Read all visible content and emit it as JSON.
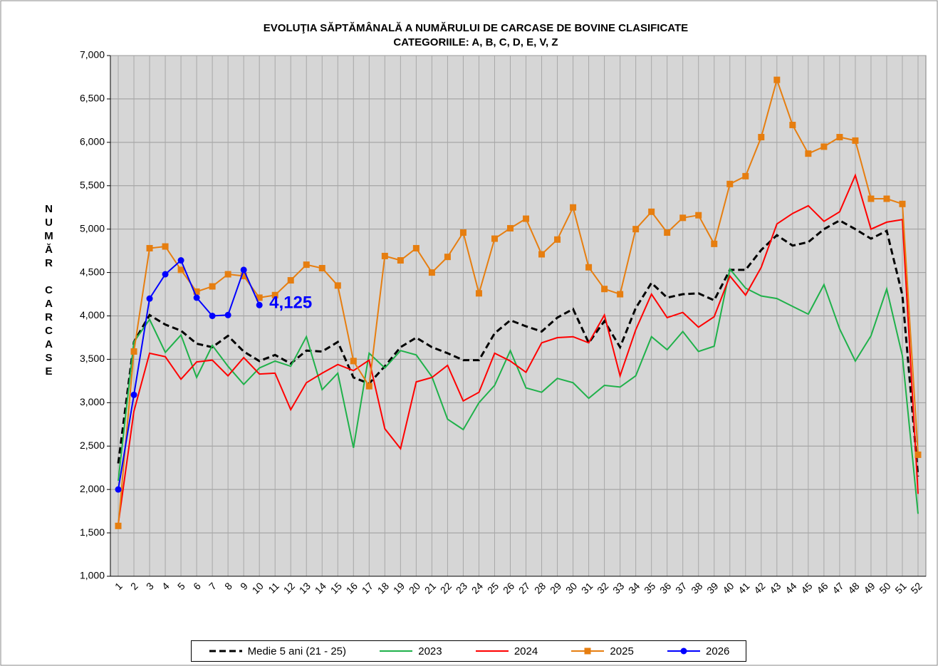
{
  "chart_data": {
    "type": "line",
    "title": "EVOLUŢIA SĂPTĂMÂNALĂ  A NUMĂRULUI DE CARCASE DE BOVINE  CLASIFICATE",
    "subtitle": "CATEGORIILE:  A, B, C, D, E, V, Z",
    "y_label": "NUMĂR CARCASE",
    "categories": [
      "1",
      "2",
      "3",
      "4",
      "5",
      "6",
      "7",
      "8",
      "9",
      "10",
      "11",
      "12",
      "13",
      "14",
      "15",
      "16",
      "17",
      "18",
      "19",
      "20",
      "21",
      "22",
      "23",
      "24",
      "25",
      "26",
      "27",
      "28",
      "29",
      "30",
      "31",
      "32",
      "33",
      "34",
      "35",
      "36",
      "37",
      "38",
      "39",
      "40",
      "41",
      "42",
      "43",
      "44",
      "45",
      "46",
      "47",
      "48",
      "49",
      "50",
      "51",
      "52"
    ],
    "ylim": [
      1000,
      7000
    ],
    "yticks": [
      {
        "value": 1000,
        "label": "1,000"
      },
      {
        "value": 1500,
        "label": "1,500"
      },
      {
        "value": 2000,
        "label": "2,000"
      },
      {
        "value": 2500,
        "label": "2,500"
      },
      {
        "value": 3000,
        "label": "3,000"
      },
      {
        "value": 3500,
        "label": "3,500"
      },
      {
        "value": 4000,
        "label": "4,000"
      },
      {
        "value": 4500,
        "label": "4,500"
      },
      {
        "value": 5000,
        "label": "5,000"
      },
      {
        "value": 5500,
        "label": "5,500"
      },
      {
        "value": 6000,
        "label": "6,000"
      },
      {
        "value": 6500,
        "label": "6,500"
      },
      {
        "value": 7000,
        "label": "7,000"
      }
    ],
    "grid": true,
    "series": [
      {
        "name": "Medie 5 ani (21 - 25)",
        "color": "#000000",
        "dash": true,
        "marker": null,
        "values": [
          2300,
          3700,
          4010,
          3900,
          3830,
          3680,
          3640,
          3770,
          3590,
          3480,
          3550,
          3450,
          3600,
          3590,
          3700,
          3290,
          3220,
          3420,
          3640,
          3750,
          3640,
          3570,
          3490,
          3490,
          3800,
          3950,
          3880,
          3820,
          3980,
          4080,
          3690,
          3940,
          3640,
          4090,
          4380,
          4210,
          4250,
          4260,
          4180,
          4530,
          4530,
          4760,
          4930,
          4810,
          4850,
          5000,
          5100,
          5000,
          4890,
          4980,
          4240,
          2150
        ]
      },
      {
        "name": "2023",
        "color": "#1fb14a",
        "dash": false,
        "marker": null,
        "values": [
          2100,
          3700,
          3960,
          3580,
          3780,
          3290,
          3660,
          3420,
          3210,
          3400,
          3480,
          3420,
          3760,
          3150,
          3340,
          2480,
          3570,
          3400,
          3600,
          3550,
          3300,
          2810,
          2690,
          3000,
          3200,
          3600,
          3170,
          3120,
          3280,
          3230,
          3050,
          3200,
          3180,
          3310,
          3760,
          3610,
          3820,
          3590,
          3650,
          4540,
          4320,
          4230,
          4200,
          4110,
          4020,
          4360,
          3850,
          3480,
          3770,
          4310,
          3540,
          1720
        ]
      },
      {
        "name": "2024",
        "color": "#ff0000",
        "dash": false,
        "marker": null,
        "values": [
          1600,
          2900,
          3570,
          3530,
          3270,
          3470,
          3490,
          3310,
          3520,
          3330,
          3340,
          2920,
          3230,
          3340,
          3440,
          3370,
          3490,
          2700,
          2470,
          3240,
          3290,
          3430,
          3020,
          3120,
          3570,
          3480,
          3350,
          3690,
          3750,
          3760,
          3690,
          4010,
          3310,
          3840,
          4250,
          3980,
          4040,
          3870,
          3990,
          4460,
          4240,
          4560,
          5060,
          5180,
          5270,
          5090,
          5200,
          5620,
          5000,
          5080,
          5110,
          1950
        ]
      },
      {
        "name": "2025",
        "color": "#e67e10",
        "dash": false,
        "marker": "square",
        "values": [
          1580,
          3590,
          4780,
          4800,
          4530,
          4280,
          4340,
          4480,
          4460,
          4210,
          4240,
          4410,
          4590,
          4550,
          4350,
          3480,
          3190,
          4690,
          4640,
          4780,
          4500,
          4680,
          4960,
          4260,
          4890,
          5010,
          5120,
          4710,
          4880,
          5250,
          4560,
          4310,
          4250,
          5000,
          5200,
          4960,
          5130,
          5160,
          4830,
          5520,
          5610,
          6060,
          6720,
          6200,
          5870,
          5950,
          6060,
          6020,
          5350,
          5350,
          5290,
          2400
        ]
      },
      {
        "name": "2026",
        "color": "#0000ff",
        "dash": false,
        "marker": "circle",
        "values": [
          2000,
          3090,
          4200,
          4480,
          4640,
          4210,
          4000,
          4010,
          4530,
          4125,
          null,
          null,
          null,
          null,
          null,
          null,
          null,
          null,
          null,
          null,
          null,
          null,
          null,
          null,
          null,
          null,
          null,
          null,
          null,
          null,
          null,
          null,
          null,
          null,
          null,
          null,
          null,
          null,
          null,
          null,
          null,
          null,
          null,
          null,
          null,
          null,
          null,
          null,
          null,
          null,
          null,
          null
        ],
        "value_labels": [
          null,
          null,
          null,
          null,
          null,
          null,
          null,
          null,
          null,
          "4,125",
          null,
          null,
          null,
          null,
          null,
          null,
          null,
          null,
          null,
          null,
          null,
          null,
          null,
          null,
          null,
          null,
          null,
          null,
          null,
          null,
          null,
          null,
          null,
          null,
          null,
          null,
          null,
          null,
          null,
          null,
          null,
          null,
          null,
          null,
          null,
          null,
          null,
          null,
          null,
          null,
          null,
          null
        ]
      }
    ]
  }
}
